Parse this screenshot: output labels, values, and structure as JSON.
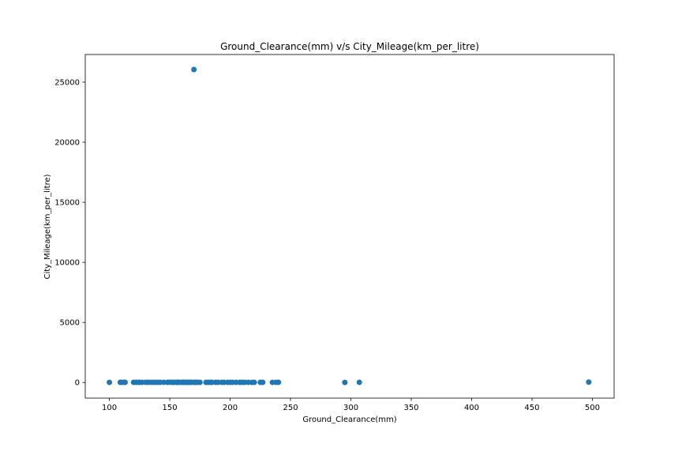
{
  "chart_data": {
    "type": "scatter",
    "title": "Ground_Clearance(mm) v/s City_Mileage(km_per_litre)",
    "xlabel": "Ground_Clearance(mm)",
    "ylabel": "City_Mileage(km_per_litre)",
    "xlim": [
      80,
      518
    ],
    "ylim": [
      -1300,
      27300
    ],
    "xticks": [
      100,
      150,
      200,
      250,
      300,
      350,
      400,
      450,
      500
    ],
    "yticks": [
      0,
      5000,
      10000,
      15000,
      20000,
      25000
    ],
    "grid": false,
    "marker_color": "#1f77b4",
    "series": [
      {
        "x": [
          100,
          109,
          110,
          112,
          113,
          120,
          122,
          124,
          125,
          127,
          130,
          132,
          134,
          136,
          138,
          140,
          142,
          145,
          148,
          150,
          152,
          153,
          155,
          156,
          157,
          158,
          160,
          161,
          162,
          163,
          164,
          165,
          166,
          167,
          168,
          170,
          171,
          172,
          173,
          175,
          180,
          182,
          184,
          185,
          188,
          190,
          193,
          195,
          198,
          200,
          202,
          205,
          208,
          210,
          212,
          215,
          218,
          220,
          225,
          227,
          235,
          238,
          240,
          295,
          307,
          497,
          170
        ],
        "y": [
          10,
          12,
          15,
          18,
          14,
          13,
          16,
          17,
          15,
          14,
          19,
          16,
          18,
          15,
          17,
          14,
          16,
          18,
          15,
          20,
          17,
          16,
          19,
          18,
          21,
          16,
          17,
          20,
          15,
          18,
          19,
          16,
          17,
          22,
          18,
          15,
          17,
          19,
          16,
          14,
          12,
          15,
          13,
          16,
          14,
          15,
          13,
          14,
          12,
          13,
          15,
          14,
          12,
          13,
          11,
          12,
          10,
          12,
          11,
          13,
          10,
          14,
          12,
          9,
          11,
          35,
          26050
        ]
      }
    ]
  }
}
